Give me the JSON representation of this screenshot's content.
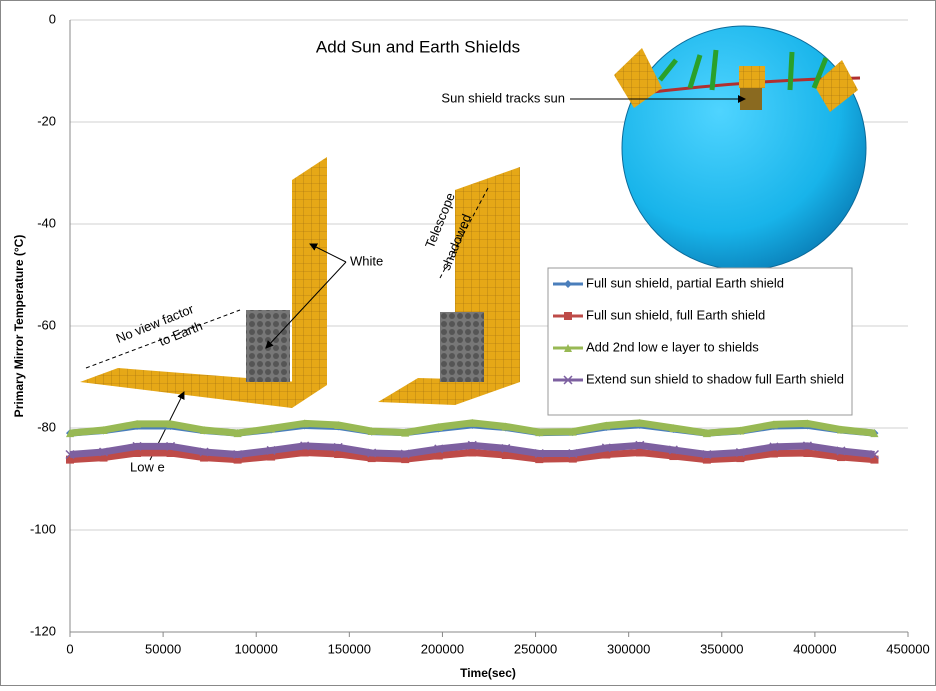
{
  "chart_data": {
    "type": "line",
    "title": "Add Sun and Earth Shields",
    "x_label": "Time(sec)",
    "y_label": "Primary Mirror Temperature (°C)",
    "x": [
      0,
      18000,
      36000,
      54000,
      72000,
      90000,
      108000,
      126000,
      144000,
      162000,
      180000,
      198000,
      216000,
      234000,
      252000,
      270000,
      288000,
      306000,
      324000,
      342000,
      360000,
      378000,
      396000,
      414000,
      432000
    ],
    "series": [
      {
        "name": "Full sun shield, partial Earth shield",
        "color": "#4a7ebb",
        "marker": "diamond",
        "values": [
          -81.0,
          -80.5,
          -79.6,
          -79.6,
          -80.5,
          -81.0,
          -80.3,
          -79.5,
          -79.7,
          -80.7,
          -80.9,
          -80.1,
          -79.4,
          -79.9,
          -80.9,
          -80.8,
          -79.8,
          -79.4,
          -80.2,
          -81.0,
          -80.6,
          -79.6,
          -79.5,
          -80.4,
          -81.0
        ]
      },
      {
        "name": "Full sun shield, full Earth shield",
        "color": "#be4b48",
        "marker": "square",
        "values": [
          -86.2,
          -85.8,
          -84.9,
          -84.9,
          -85.8,
          -86.2,
          -85.6,
          -84.8,
          -85.1,
          -85.9,
          -86.1,
          -85.4,
          -84.8,
          -85.3,
          -86.1,
          -86.0,
          -85.2,
          -84.8,
          -85.5,
          -86.2,
          -85.9,
          -85.0,
          -84.9,
          -85.7,
          -86.2
        ]
      },
      {
        "name": "Add 2nd low e layer to shields",
        "color": "#98b954",
        "marker": "triangle",
        "values": [
          -81.0,
          -80.4,
          -79.2,
          -79.2,
          -80.4,
          -81.0,
          -80.1,
          -79.1,
          -79.4,
          -80.6,
          -80.9,
          -79.8,
          -79.0,
          -79.7,
          -80.8,
          -80.7,
          -79.5,
          -79.0,
          -80.0,
          -81.0,
          -80.5,
          -79.3,
          -79.1,
          -80.3,
          -81.0
        ]
      },
      {
        "name": "Extend sun shield to shadow full Earth shield",
        "color": "#7d60a0",
        "marker": "x",
        "values": [
          -85.2,
          -84.7,
          -83.6,
          -83.6,
          -84.7,
          -85.2,
          -84.4,
          -83.5,
          -83.8,
          -84.9,
          -85.1,
          -84.1,
          -83.4,
          -84.0,
          -85.0,
          -85.0,
          -83.9,
          -83.4,
          -84.3,
          -85.2,
          -84.8,
          -83.7,
          -83.5,
          -84.5,
          -85.2
        ]
      }
    ],
    "xlim": [
      0,
      450000
    ],
    "xticks": [
      0,
      50000,
      100000,
      150000,
      200000,
      250000,
      300000,
      350000,
      400000,
      450000
    ],
    "ylim": [
      -120,
      0
    ],
    "yticks": [
      0,
      -20,
      -40,
      -60,
      -80,
      -100,
      -120
    ],
    "grid": true,
    "annotations": [
      "Sun shield tracks sun",
      "White",
      "Low e",
      "Telescope",
      "shadowed",
      "No view factor",
      "to Earth"
    ]
  }
}
